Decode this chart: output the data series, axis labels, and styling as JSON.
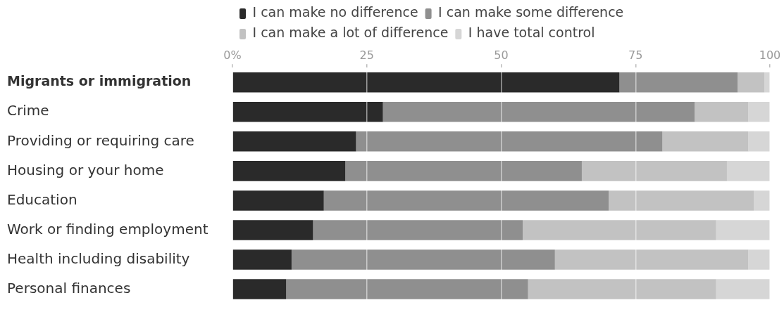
{
  "chart_data": {
    "type": "bar",
    "orientation": "horizontal",
    "stacked": true,
    "categories": [
      "Migrants or immigration",
      "Crime",
      "Providing or requiring care",
      "Housing or your home",
      "Education",
      "Work or finding employment",
      "Health including disability",
      "Personal finances"
    ],
    "series": [
      {
        "name": "I can make no difference",
        "color": "#2a2a2a",
        "values": [
          72,
          28,
          23,
          21,
          17,
          15,
          11,
          10
        ]
      },
      {
        "name": "I can make some difference",
        "color": "#8f8f8f",
        "values": [
          22,
          58,
          57,
          44,
          53,
          39,
          49,
          45
        ]
      },
      {
        "name": "I can make a lot of difference",
        "color": "#c2c2c2",
        "values": [
          5,
          10,
          16,
          27,
          27,
          36,
          36,
          35
        ]
      },
      {
        "name": "I have total control",
        "color": "#d6d6d6",
        "values": [
          1,
          4,
          4,
          8,
          3,
          10,
          4,
          10
        ]
      }
    ],
    "xlim": [
      0,
      100
    ],
    "xticks": [
      {
        "value": 0,
        "label": "0%"
      },
      25,
      50,
      75,
      100
    ],
    "grid": "x",
    "legend": "top left"
  }
}
